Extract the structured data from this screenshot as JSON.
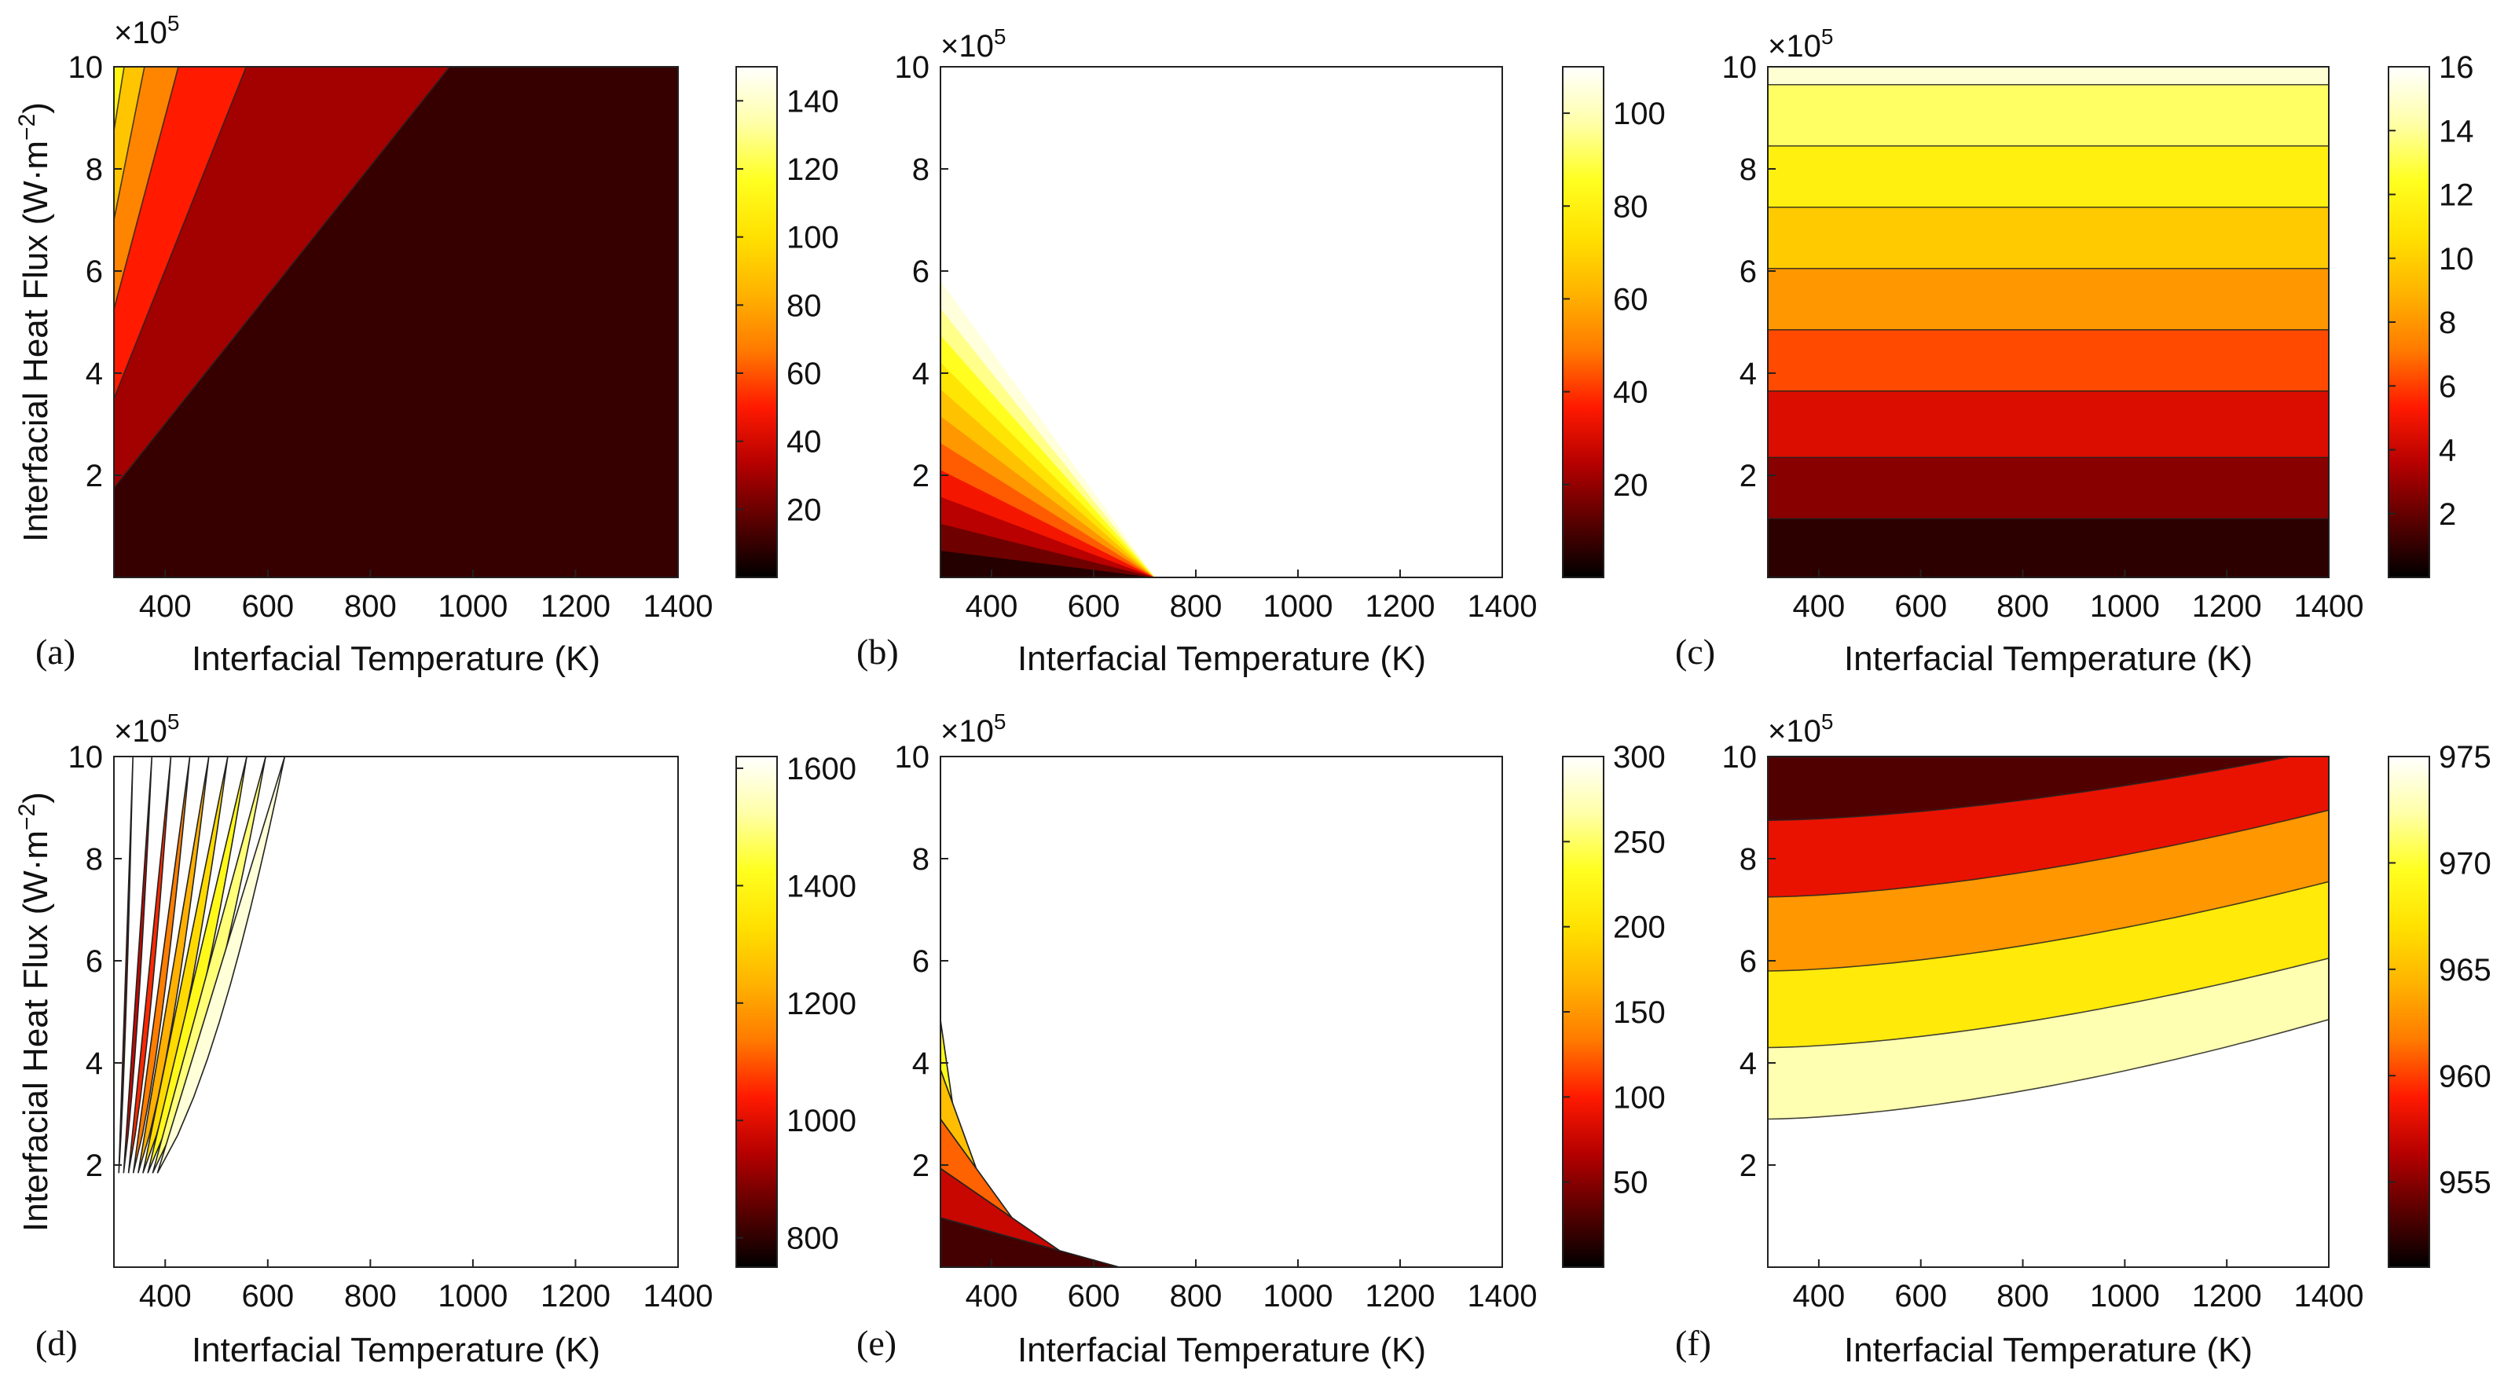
{
  "colormap": [
    "#000000",
    "#5a0000",
    "#b50000",
    "#ff1a00",
    "#ff7a00",
    "#ffb300",
    "#ffe100",
    "#ffff20",
    "#ffffa8",
    "#ffffff"
  ],
  "chart_data": [
    {
      "id": "a",
      "panel_label": "(a)",
      "type": "contour",
      "xlabel": "Interfacial Temperature (K)",
      "ylabel": "Interfacial Heat Flux (W·m−2)",
      "y_multiplier": "×10",
      "y_multiplier_exp": "5",
      "xlim": [
        300,
        1400
      ],
      "ylim": [
        0,
        10
      ],
      "xticks": [
        "400",
        "600",
        "800",
        "1000",
        "1200",
        "1400"
      ],
      "yticks": [
        "2",
        "4",
        "6",
        "8",
        "10"
      ],
      "colorbar": {
        "range": [
          0,
          150
        ],
        "ticks": [
          "20",
          "40",
          "60",
          "80",
          "100",
          "120",
          "140"
        ]
      },
      "levels": [
        20,
        40,
        60,
        80,
        100,
        120,
        140
      ],
      "model": "slope",
      "c": 0.045,
      "a": 0.088
    },
    {
      "id": "b",
      "panel_label": "(b)",
      "type": "contour",
      "xlabel": "Interfacial Temperature (K)",
      "ylabel": "",
      "y_multiplier": "×10",
      "y_multiplier_exp": "5",
      "xlim": [
        300,
        1400
      ],
      "ylim": [
        0,
        10
      ],
      "xticks": [
        "400",
        "600",
        "800",
        "1000",
        "1200",
        "1400"
      ],
      "yticks": [
        "2",
        "4",
        "6",
        "8",
        "10"
      ],
      "colorbar": {
        "range": [
          0,
          110
        ],
        "ticks": [
          "20",
          "40",
          "60",
          "80",
          "100"
        ]
      },
      "levels": [
        10,
        20,
        30,
        40,
        50,
        60,
        70,
        80,
        90,
        100
      ],
      "model": "wedge",
      "x0": 720,
      "y0": 5.8
    },
    {
      "id": "c",
      "panel_label": "(c)",
      "type": "contour",
      "xlabel": "Interfacial Temperature (K)",
      "ylabel": "",
      "y_multiplier": "×10",
      "y_multiplier_exp": "5",
      "xlim": [
        300,
        1400
      ],
      "ylim": [
        0,
        10
      ],
      "xticks": [
        "400",
        "600",
        "800",
        "1000",
        "1200",
        "1400"
      ],
      "yticks": [
        "2",
        "4",
        "6",
        "8",
        "10"
      ],
      "colorbar": {
        "range": [
          0,
          16
        ],
        "ticks": [
          "2",
          "4",
          "6",
          "8",
          "10",
          "12",
          "14",
          "16"
        ]
      },
      "levels": [
        2,
        4,
        6,
        8,
        10,
        12,
        14
      ],
      "model": "bands",
      "boundaries": [
        1.15,
        2.35,
        3.65,
        4.85,
        6.05,
        7.25,
        8.45,
        9.65
      ]
    },
    {
      "id": "d",
      "panel_label": "(d)",
      "type": "contour",
      "xlabel": "Interfacial Temperature (K)",
      "ylabel": "Interfacial Heat Flux (W·m−2)",
      "y_multiplier": "×10",
      "y_multiplier_exp": "5",
      "xlim": [
        300,
        1400
      ],
      "ylim": [
        0,
        10
      ],
      "xticks": [
        "400",
        "600",
        "800",
        "1000",
        "1200",
        "1400"
      ],
      "yticks": [
        "2",
        "4",
        "6",
        "8",
        "10"
      ],
      "colorbar": {
        "range": [
          750,
          1620
        ],
        "ticks": [
          "800",
          "1000",
          "1200",
          "1400",
          "1600"
        ]
      },
      "levels": [
        800,
        900,
        1000,
        1100,
        1200,
        1300,
        1400,
        1500,
        1600
      ],
      "model": "fan",
      "xmin": 300,
      "xmax": 670,
      "ymin": 1.1
    },
    {
      "id": "e",
      "panel_label": "(e)",
      "type": "contour",
      "xlabel": "Interfacial Temperature (K)",
      "ylabel": "",
      "y_multiplier": "×10",
      "y_multiplier_exp": "5",
      "xlim": [
        300,
        1400
      ],
      "ylim": [
        0,
        10
      ],
      "xticks": [
        "400",
        "600",
        "800",
        "1000",
        "1200",
        "1400"
      ],
      "yticks": [
        "2",
        "4",
        "6",
        "8",
        "10"
      ],
      "colorbar": {
        "range": [
          0,
          300
        ],
        "ticks": [
          "50",
          "100",
          "150",
          "200",
          "250",
          "300"
        ]
      },
      "levels": [
        50,
        100,
        150,
        200,
        250
      ],
      "model": "wedge-rev",
      "x0": 720,
      "y0": 5.8
    },
    {
      "id": "f",
      "panel_label": "(f)",
      "type": "contour",
      "xlabel": "Interfacial Temperature (K)",
      "ylabel": "",
      "y_multiplier": "×10",
      "y_multiplier_exp": "5",
      "xlim": [
        300,
        1400
      ],
      "ylim": [
        0,
        10
      ],
      "xticks": [
        "400",
        "600",
        "800",
        "1000",
        "1200",
        "1400"
      ],
      "yticks": [
        "2",
        "4",
        "6",
        "8",
        "10"
      ],
      "colorbar": {
        "range": [
          951,
          975
        ],
        "ticks": [
          "955",
          "960",
          "965",
          "970",
          "975"
        ]
      },
      "levels": [
        955,
        960,
        965,
        970
      ],
      "model": "curves",
      "curves": [
        [
          8.75,
          10.15
        ],
        [
          7.25,
          8.95
        ],
        [
          5.8,
          7.55
        ],
        [
          4.3,
          6.05
        ],
        [
          2.9,
          4.85
        ]
      ]
    }
  ]
}
